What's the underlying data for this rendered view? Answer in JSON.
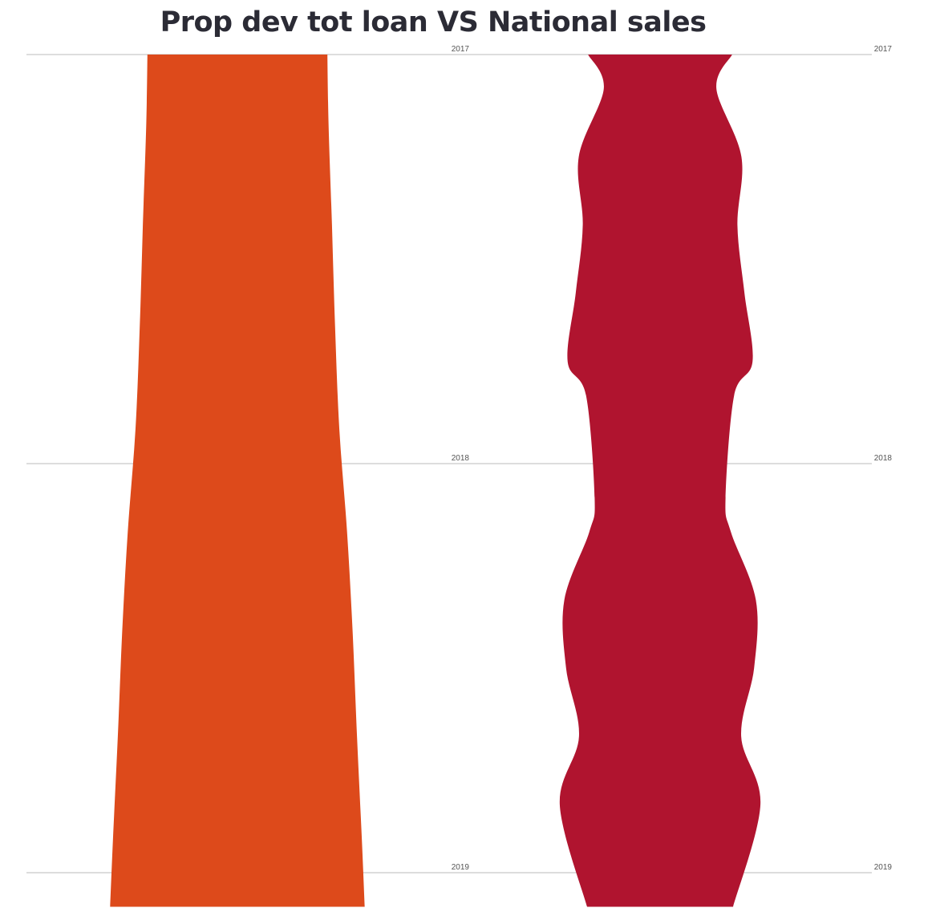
{
  "chart_data": {
    "type": "area",
    "title": "Prop dev tot loan VS National sales",
    "orientation": "vertical-streams",
    "categories": [
      "2017",
      "2018",
      "2019"
    ],
    "grid": true,
    "colors": {
      "series_1": "#DD4A1B",
      "series_2": "#B0142F",
      "title": "#2b2b35",
      "grid": "#bbbbbb"
    },
    "series": [
      {
        "stream": "left",
        "values_by_month": [
          {
            "period": "2017-01",
            "value": 31.6
          },
          {
            "period": "2017-03",
            "value": 32.0
          },
          {
            "period": "2017-06",
            "value": 33.2
          },
          {
            "period": "2017-09",
            "value": 34.3
          },
          {
            "period": "2017-12",
            "value": 35.8
          },
          {
            "period": "2018-03",
            "value": 38.5
          },
          {
            "period": "2018-06",
            "value": 40.5
          },
          {
            "period": "2018-09",
            "value": 42.0
          },
          {
            "period": "2018-12",
            "value": 43.7
          },
          {
            "period": "2019-02",
            "value": 44.7
          }
        ]
      },
      {
        "stream": "right",
        "values_by_month": [
          {
            "period": "2017-01",
            "value": 28.5
          },
          {
            "period": "2017-02",
            "value": 22.3
          },
          {
            "period": "2017-04",
            "value": 32.2
          },
          {
            "period": "2017-06",
            "value": 30.6
          },
          {
            "period": "2017-08",
            "value": 33.4
          },
          {
            "period": "2017-10",
            "value": 36.6
          },
          {
            "period": "2017-11",
            "value": 29.3
          },
          {
            "period": "2018-02",
            "value": 25.9
          },
          {
            "period": "2018-03",
            "value": 28.0
          },
          {
            "period": "2018-05",
            "value": 37.9
          },
          {
            "period": "2018-07",
            "value": 37.2
          },
          {
            "period": "2018-09",
            "value": 32.1
          },
          {
            "period": "2018-11",
            "value": 39.7
          },
          {
            "period": "2019-02",
            "value": 28.9
          }
        ]
      }
    ]
  }
}
